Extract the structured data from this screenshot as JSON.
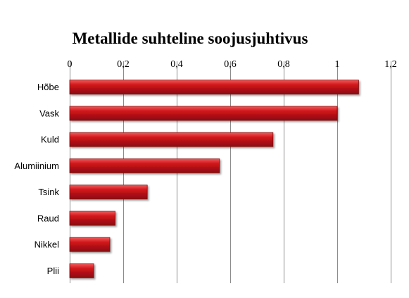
{
  "chart_data": {
    "type": "bar",
    "orientation": "horizontal",
    "title": "Metallide suhteline soojusjuhtivus",
    "categories": [
      "Hõbe",
      "Vask",
      "Kuld",
      "Alumiinium",
      "Tsink",
      "Raud",
      "Nikkel",
      "Plii"
    ],
    "values": [
      1.08,
      1.0,
      0.76,
      0.56,
      0.29,
      0.17,
      0.15,
      0.09
    ],
    "xlim": [
      0,
      1.2
    ],
    "x_ticks": [
      0,
      0.2,
      0.4,
      0.6,
      0.8,
      1.0,
      1.2
    ],
    "x_tick_labels": [
      "0",
      "0,2",
      "0,4",
      "0,6",
      "0,8",
      "1",
      "1,2"
    ],
    "x_axis_position": "top",
    "grid": true,
    "legend": "none",
    "bar_color": "#d0141a",
    "bar_highlight": "#f25a5a",
    "bar_shadow": "#8a0c10"
  }
}
